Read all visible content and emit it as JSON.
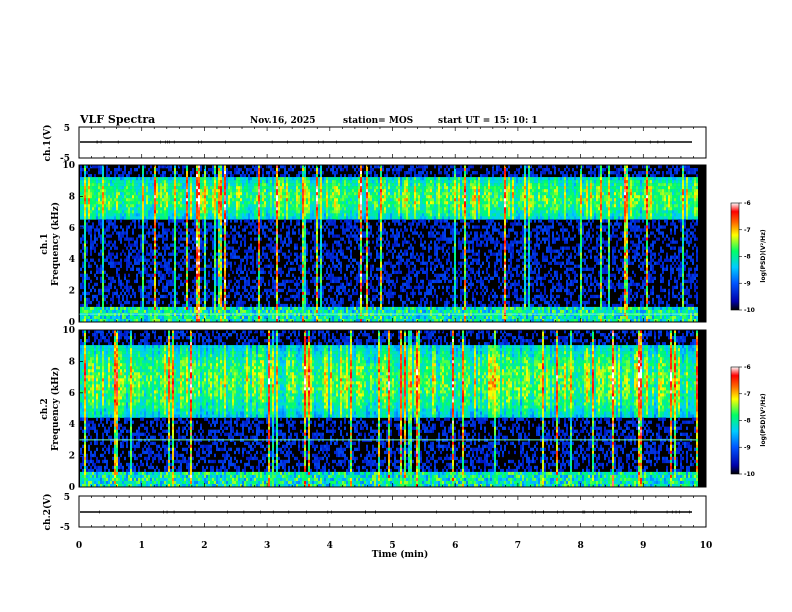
{
  "header": {
    "title": "VLF Spectra",
    "date": "Nov.16, 2025",
    "station": "station= MOS",
    "start": "start  UT =   15: 10: 1"
  },
  "chart_data": [
    {
      "type": "line",
      "ylabel": "ch.1(V)",
      "xlim": [
        0,
        10
      ],
      "ylim": [
        -5,
        5
      ],
      "yticks": [
        "5",
        "-5"
      ],
      "baseline": 0,
      "color": "#000000"
    },
    {
      "type": "heatmap",
      "ylabel_top": "ch.1",
      "ylabel": "Frequency (kHz)",
      "xlim": [
        0,
        9.85
      ],
      "ylim": [
        0,
        10
      ],
      "yticks": [
        "0",
        "2",
        "4",
        "6",
        "8",
        "10"
      ],
      "band_khz": [
        6.5,
        9.3
      ],
      "hum_line_khz": 0.5,
      "colorbar": {
        "label": "log(PSD)(V²/Hz)",
        "range": [
          -10,
          -6
        ],
        "ticks": [
          "-6",
          "-7",
          "-8",
          "-9",
          "-10"
        ]
      }
    },
    {
      "type": "heatmap",
      "ylabel_top": "ch.2",
      "ylabel": "Frequency (kHz)",
      "xlim": [
        0,
        9.85
      ],
      "ylim": [
        0,
        10
      ],
      "yticks": [
        "0",
        "2",
        "4",
        "6",
        "8",
        "10"
      ],
      "band_khz": [
        4.5,
        9.0
      ],
      "hum_line_khz": 3.0,
      "colorbar": {
        "label": "log(PSD)(V²/Hz)",
        "range": [
          -10,
          -6
        ],
        "ticks": [
          "-6",
          "-7",
          "-8",
          "-9",
          "-10"
        ]
      }
    },
    {
      "type": "line",
      "ylabel": "ch.2(V)",
      "xlim": [
        0,
        10
      ],
      "ylim": [
        -5,
        5
      ],
      "yticks": [
        "5",
        "-5"
      ],
      "baseline": 0,
      "color": "#000000"
    }
  ],
  "xaxis": {
    "label": "Time (min)",
    "ticks": [
      "0",
      "1",
      "2",
      "3",
      "4",
      "5",
      "6",
      "7",
      "8",
      "9",
      "10"
    ]
  }
}
